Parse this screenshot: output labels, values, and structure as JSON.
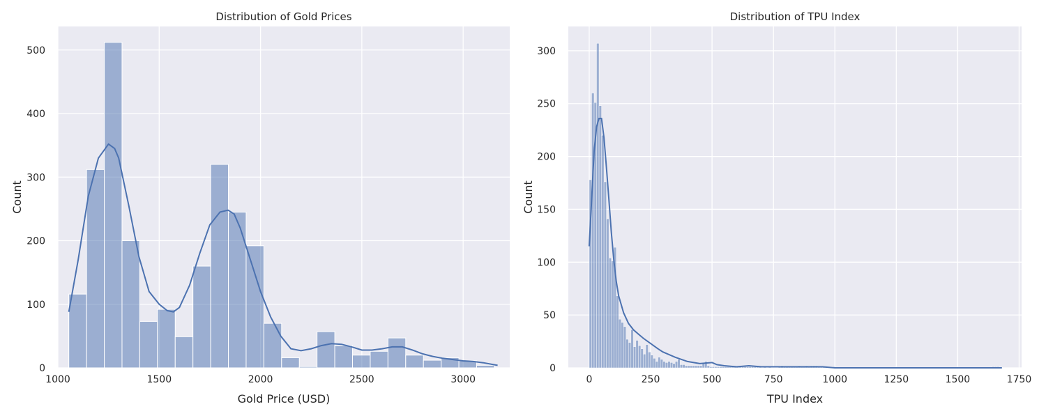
{
  "chart_data": [
    {
      "type": "histogram",
      "title": "Distribution of Gold Prices",
      "xlabel": "Gold Price (USD)",
      "ylabel": "Count",
      "xlim": [
        1000,
        3230
      ],
      "ylim": [
        0,
        537
      ],
      "xticks": [
        1000,
        1500,
        2000,
        2500,
        3000
      ],
      "yticks": [
        0,
        100,
        200,
        300,
        400,
        500
      ],
      "grid": true,
      "bin_start": 1054,
      "bin_width": 87.5,
      "counts": [
        116,
        312,
        512,
        200,
        73,
        92,
        49,
        160,
        320,
        245,
        192,
        70,
        16,
        2,
        57,
        35,
        20,
        26,
        47,
        20,
        12,
        16,
        11,
        4
      ],
      "kde": {
        "x": [
          1054,
          1100,
          1150,
          1200,
          1250,
          1280,
          1300,
          1350,
          1400,
          1450,
          1500,
          1540,
          1570,
          1600,
          1650,
          1700,
          1750,
          1800,
          1840,
          1870,
          1900,
          1950,
          2000,
          2050,
          2100,
          2150,
          2200,
          2250,
          2300,
          2350,
          2400,
          2450,
          2500,
          2550,
          2600,
          2650,
          2700,
          2750,
          2800,
          2850,
          2900,
          2950,
          3000,
          3050,
          3100,
          3150,
          3170
        ],
        "y": [
          88,
          170,
          270,
          330,
          352,
          345,
          330,
          255,
          175,
          120,
          100,
          90,
          88,
          95,
          130,
          180,
          225,
          245,
          248,
          242,
          220,
          170,
          120,
          80,
          50,
          30,
          27,
          30,
          35,
          38,
          37,
          33,
          28,
          28,
          30,
          33,
          33,
          28,
          22,
          18,
          15,
          13,
          11,
          10,
          8,
          5,
          4
        ]
      }
    },
    {
      "type": "histogram",
      "title": "Distribution of TPU Index",
      "xlabel": "TPU Index",
      "ylabel": "Count",
      "xlim": [
        -85,
        1760
      ],
      "ylim": [
        0,
        323
      ],
      "xticks": [
        0,
        250,
        500,
        750,
        1000,
        1250,
        1500,
        1750
      ],
      "yticks": [
        0,
        50,
        100,
        150,
        200,
        250,
        300
      ],
      "grid": true,
      "bin_start": 0,
      "bin_width": 10,
      "counts": [
        178,
        260,
        251,
        307,
        248,
        220,
        176,
        141,
        104,
        101,
        114,
        68,
        46,
        43,
        39,
        27,
        24,
        36,
        20,
        26,
        21,
        18,
        13,
        22,
        15,
        12,
        9,
        6,
        10,
        8,
        6,
        5,
        6,
        5,
        4,
        6,
        8,
        3,
        3,
        2,
        2,
        2,
        2,
        2,
        2,
        2,
        5,
        6,
        2,
        1,
        1,
        1,
        1,
        1,
        1,
        1,
        1,
        1,
        1,
        1,
        1,
        1,
        1,
        1,
        1,
        1,
        1,
        1,
        1,
        1,
        0,
        1,
        0,
        1,
        0,
        0,
        0,
        1,
        2,
        1,
        1,
        1,
        1,
        1,
        1,
        2,
        1,
        1,
        2,
        1,
        2,
        2,
        2,
        1,
        1,
        1,
        1,
        0,
        0,
        1,
        0,
        0,
        0,
        0,
        0,
        0,
        0,
        0,
        0,
        0,
        0,
        0,
        0,
        0,
        0,
        0,
        0,
        0,
        0,
        0,
        0,
        0,
        0,
        0,
        0,
        0,
        0,
        0,
        0,
        0,
        0,
        0,
        0,
        0,
        0,
        0,
        0,
        0,
        0,
        0,
        0,
        0,
        0,
        0,
        0,
        0,
        0,
        0,
        0,
        0,
        0,
        0,
        0,
        0,
        0,
        0,
        0,
        0,
        0,
        0,
        0,
        0,
        0,
        0,
        1,
        1,
        1
      ],
      "kde": {
        "x": [
          0,
          10,
          20,
          30,
          40,
          50,
          60,
          70,
          80,
          90,
          100,
          110,
          120,
          140,
          160,
          180,
          200,
          220,
          250,
          280,
          300,
          350,
          400,
          450,
          500,
          520,
          550,
          600,
          650,
          700,
          750,
          800,
          850,
          900,
          950,
          1000,
          1100,
          1200,
          1400,
          1600,
          1680
        ],
        "y": [
          115,
          160,
          205,
          228,
          236,
          236,
          218,
          190,
          160,
          128,
          102,
          82,
          68,
          52,
          42,
          36,
          32,
          28,
          23,
          18,
          15,
          10,
          6,
          4,
          5,
          3,
          2,
          1,
          2,
          1,
          1,
          1,
          1,
          1,
          1,
          0,
          0,
          0,
          0,
          0,
          0
        ]
      }
    }
  ]
}
